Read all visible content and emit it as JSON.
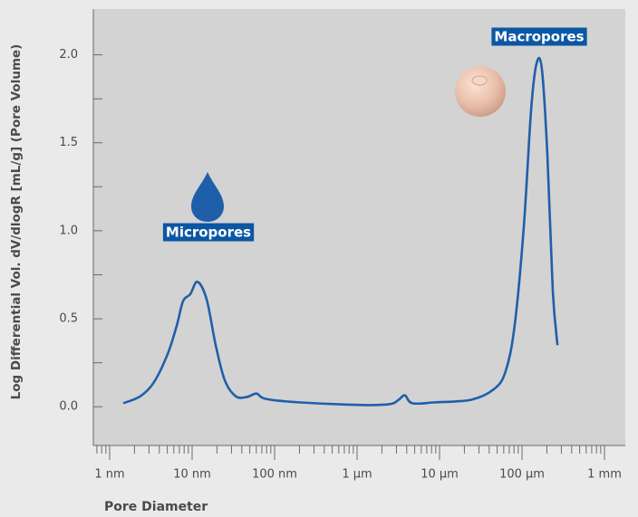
{
  "chart_data": {
    "type": "line",
    "y_label": "Log Differential Vol. dV/dlogR [mL/g] (Pore Volume)",
    "x_label": "Pore Diameter",
    "x_scale": "log",
    "x_minor_ticks": true,
    "xlim": [
      0.634,
      1700000
    ],
    "xticks": [
      {
        "value": 1,
        "label": "1 nm"
      },
      {
        "value": 10,
        "label": "10 nm"
      },
      {
        "value": 100,
        "label": "100 nm"
      },
      {
        "value": 1000,
        "label": "1 µm"
      },
      {
        "value": 10000,
        "label": "10 µm"
      },
      {
        "value": 100000,
        "label": "100 µm"
      },
      {
        "value": 1000000,
        "label": "1 mm"
      }
    ],
    "ylim": [
      -0.22,
      2.26
    ],
    "yticks": [
      {
        "value": 0,
        "label": "0.0"
      },
      0.5,
      {
        "value": 1,
        "label": "1.0"
      },
      1.5,
      {
        "value": 2,
        "label": "2.0"
      }
    ],
    "yminor_ticks": [
      0.25,
      0.75,
      1.25,
      1.75
    ],
    "color": "#1f5faa",
    "x": [
      1.46,
      2.36,
      3.45,
      5.05,
      6.5,
      7.76,
      9.5,
      11.6,
      15,
      19.3,
      24.9,
      33.7,
      45.7,
      60.3,
      77.6,
      198,
      1160,
      2500,
      3200,
      3800,
      4680,
      8800,
      24250,
      45700,
      63100,
      81300,
      105000,
      129000,
      150000,
      174000,
      203000,
      236000,
      269000
    ],
    "values": [
      0.02,
      0.06,
      0.14,
      0.3,
      0.46,
      0.6,
      0.64,
      0.71,
      0.61,
      0.35,
      0.15,
      0.06,
      0.055,
      0.075,
      0.045,
      0.025,
      0.01,
      0.015,
      0.04,
      0.065,
      0.02,
      0.025,
      0.04,
      0.1,
      0.2,
      0.46,
      1.02,
      1.69,
      1.95,
      1.92,
      1.43,
      0.66,
      0.35
    ],
    "annotations": [
      {
        "text": "Micropores"
      },
      {
        "text": "Macropores"
      }
    ]
  }
}
